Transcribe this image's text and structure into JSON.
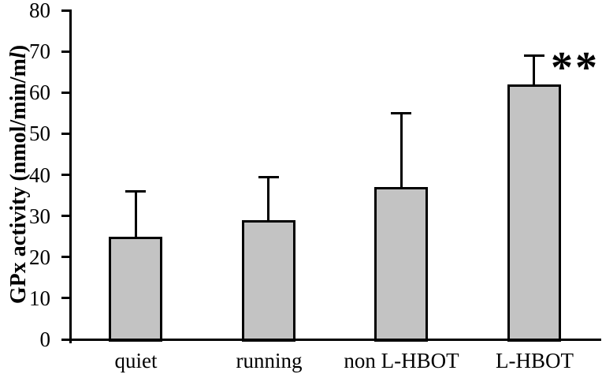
{
  "chart_data": {
    "type": "bar",
    "title": "",
    "categories": [
      "quiet",
      "running",
      "non L-HBOT",
      "L-HBOT"
    ],
    "values": [
      25,
      29,
      37,
      62
    ],
    "errors": [
      11,
      10.5,
      18,
      7
    ],
    "error_direction": "plus-only",
    "ylabel": "GPx activity (nmol/min/ml)",
    "ylabel_parts": {
      "prefix": "GPx activity (nmol/min/m",
      "italic": "l",
      "suffix": ")"
    },
    "xlabel": "",
    "ylim": [
      0,
      80
    ],
    "yticks": [
      0,
      10,
      20,
      30,
      40,
      50,
      60,
      70,
      80
    ],
    "grid": false,
    "legend": null,
    "bar_fill_color": "#c3c3c3",
    "bar_border_color": "#000000",
    "axis_color": "#000000",
    "annotations": [
      {
        "text": "**",
        "target_category": "L-HBOT"
      }
    ]
  }
}
